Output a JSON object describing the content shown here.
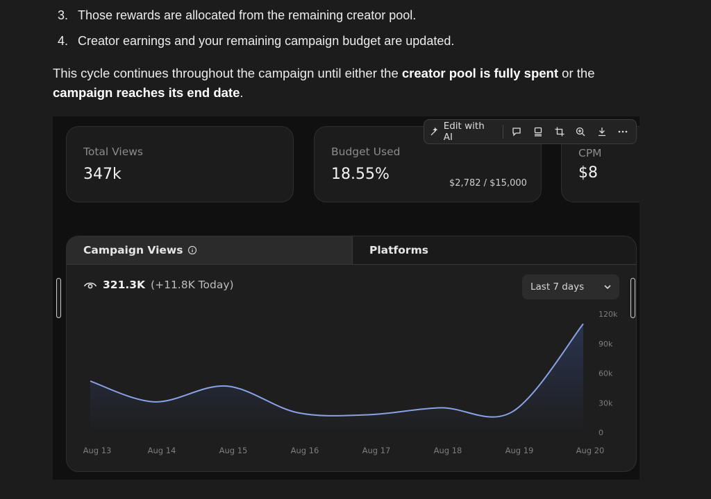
{
  "list": [
    {
      "num": "3.",
      "text": "Those rewards are allocated from the remaining creator pool."
    },
    {
      "num": "4.",
      "text": "Creator earnings and your remaining campaign budget are updated."
    }
  ],
  "paragraph": {
    "part1": "This cycle continues throughout the campaign until either the ",
    "bold1": "creator pool is fully spent",
    "part2": " or the ",
    "bold2": "campaign reaches its end date",
    "part3": "."
  },
  "toolbar": {
    "edit_ai_label": "Edit with AI",
    "icons": [
      "comment-icon",
      "device-icon",
      "crop-icon",
      "zoom-in-icon",
      "download-icon",
      "more-icon"
    ]
  },
  "stats": {
    "total_views": {
      "label": "Total Views",
      "value": "347k"
    },
    "budget_used": {
      "label": "Budget Used",
      "value": "18.55%",
      "detail": "$2,782 / $15,000"
    },
    "cpm": {
      "label": "CPM",
      "value": "$8"
    }
  },
  "tabs": {
    "active": "Campaign Views",
    "inactive": "Platforms"
  },
  "views": {
    "total": "321.3K",
    "today": "(+11.8K Today)"
  },
  "range_select": {
    "value": "Last 7 days"
  },
  "colors": {
    "line": "#8aa3e6",
    "fill_top": "#2a3450",
    "fill_bottom": "#1e1e1e"
  },
  "chart_data": {
    "type": "area",
    "x": [
      "Aug 13",
      "Aug 14",
      "Aug 15",
      "Aug 16",
      "Aug 17",
      "Aug 18",
      "Aug 19",
      "Aug 20"
    ],
    "y_ticks": [
      "120k",
      "90k",
      "60k",
      "30k",
      "0"
    ],
    "y_tick_values": [
      120000,
      90000,
      60000,
      30000,
      0
    ],
    "ylim": [
      0,
      120000
    ],
    "values": [
      52000,
      31000,
      47000,
      20000,
      18000,
      25000,
      21000,
      110000
    ]
  }
}
